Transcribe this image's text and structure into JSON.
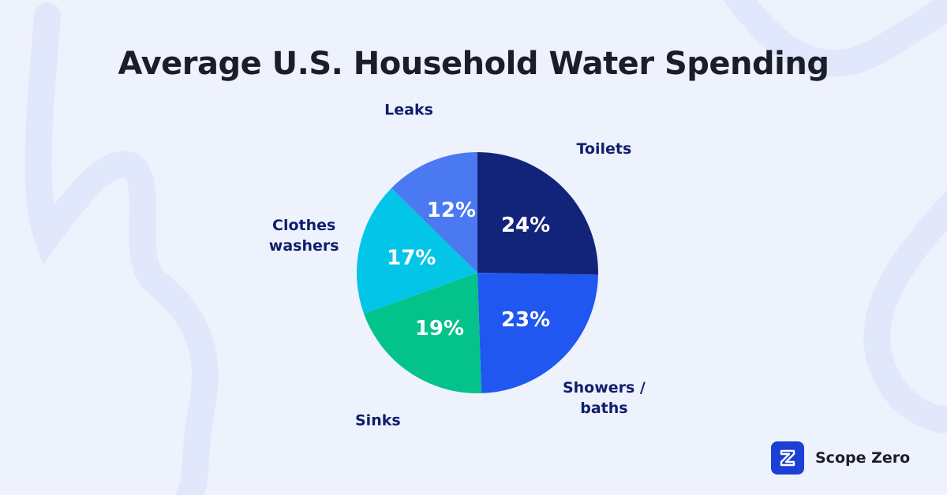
{
  "chart_data": {
    "type": "pie",
    "title": "Average U.S. Household Water Spending",
    "slices": [
      {
        "label": [
          "Toilets"
        ],
        "value": 24,
        "value_label": "24%",
        "color": "#12247a"
      },
      {
        "label": [
          "Showers /",
          "baths"
        ],
        "value": 23,
        "value_label": "23%",
        "color": "#2057f0"
      },
      {
        "label": [
          "Sinks"
        ],
        "value": 19,
        "value_label": "19%",
        "color": "#03c28a"
      },
      {
        "label": [
          "Clothes",
          "washers"
        ],
        "value": 17,
        "value_label": "17%",
        "color": "#03c5e8"
      },
      {
        "label": [
          "Leaks"
        ],
        "value": 12,
        "value_label": "12%",
        "color": "#4a79f2"
      }
    ],
    "start": "top",
    "direction": "clockwise",
    "label_color": "#0f1f6e",
    "value_text_color": "#ffffff"
  },
  "brand": {
    "name": "Scope Zero",
    "logo_icon": "scope-zero-logo-icon",
    "color": "#1c3fd6"
  },
  "background": "#eef2fd"
}
